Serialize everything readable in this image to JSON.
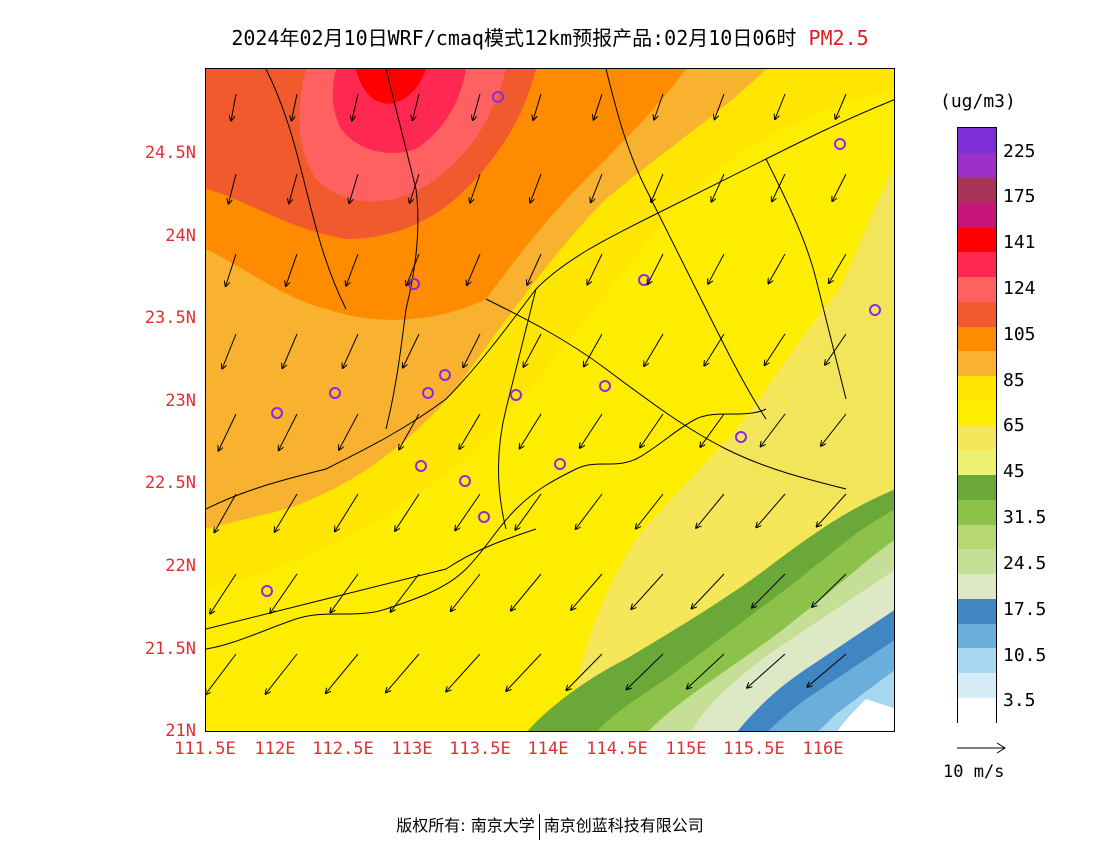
{
  "title": {
    "main": "2024年02月10日WRF/cmaq模式12km预报产品:02月10日06时",
    "pollutant": "PM2.5"
  },
  "axes": {
    "lat_labels": [
      "24.5N",
      "24N",
      "23.5N",
      "23N",
      "22.5N",
      "22N",
      "21.5N",
      "21N"
    ],
    "lon_labels": [
      "111.5E",
      "112E",
      "112.5E",
      "113E",
      "113.5E",
      "114E",
      "114.5E",
      "115E",
      "115.5E",
      "116E"
    ]
  },
  "legend": {
    "unit": "(ug/m3)",
    "colors": [
      "#ffffff",
      "#d6edf8",
      "#a8d8f0",
      "#6aaedc",
      "#3f86c2",
      "#dde8c4",
      "#c5df96",
      "#b6d975",
      "#8cc24a",
      "#6aa83a",
      "#eef070",
      "#f5e65a",
      "#ffed00",
      "#ffe600",
      "#f8b230",
      "#ff8c00",
      "#f05a2d",
      "#ff6060",
      "#ff2850",
      "#ff0000",
      "#c81478",
      "#a8325a",
      "#9a30c8",
      "#7e30d8"
    ],
    "labels": [
      "3.5",
      "10.5",
      "17.5",
      "24.5",
      "31.5",
      "45",
      "65",
      "85",
      "105",
      "124",
      "141",
      "175",
      "225"
    ]
  },
  "wind_key": {
    "label": "10 m/s"
  },
  "footer": {
    "left": "版权所有: 南京大学",
    "right": "南京创蓝科技有限公司"
  }
}
